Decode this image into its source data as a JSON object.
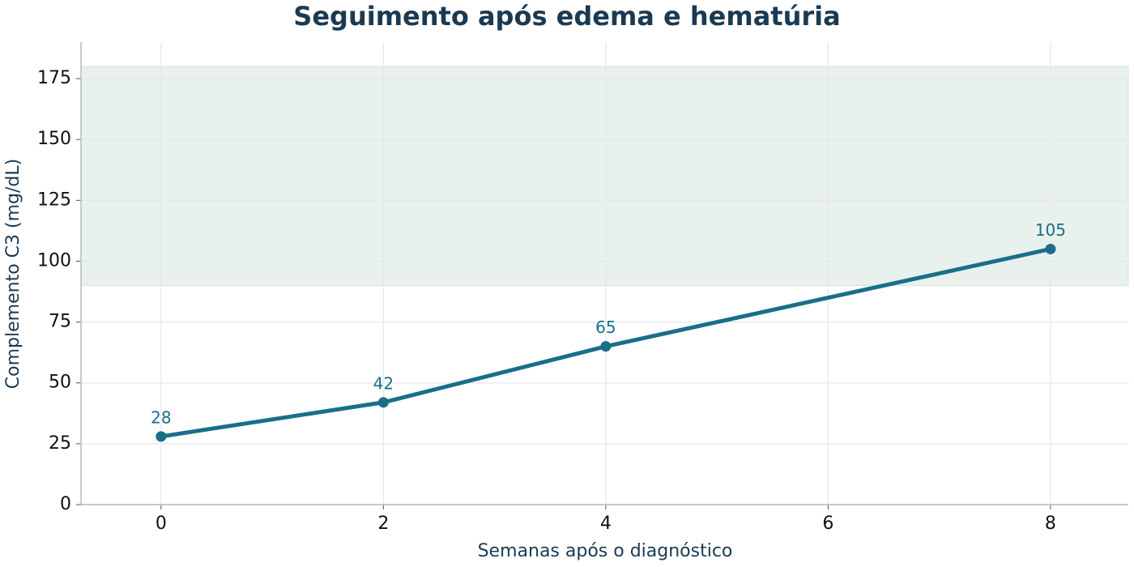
{
  "chart_data": {
    "type": "line",
    "title": "Seguimento após edema e hematúria",
    "x_label": "Semanas após o diagnóstico",
    "y_label": "Complemento C3 (mg/dL)",
    "x": [
      0,
      2,
      4,
      8
    ],
    "values": [
      28,
      42,
      65,
      105
    ],
    "color": "#1a6e8a",
    "xlim": [
      -0.72,
      8.7
    ],
    "xticks": [
      0,
      2,
      4,
      6,
      8
    ],
    "ylim": [
      0,
      190
    ],
    "yticks": [
      0,
      25,
      50,
      75,
      100,
      125,
      150,
      175
    ],
    "reference_band": {
      "ymin": 90,
      "ymax": 180,
      "color": "#e9f1ec"
    },
    "grid": true
  }
}
